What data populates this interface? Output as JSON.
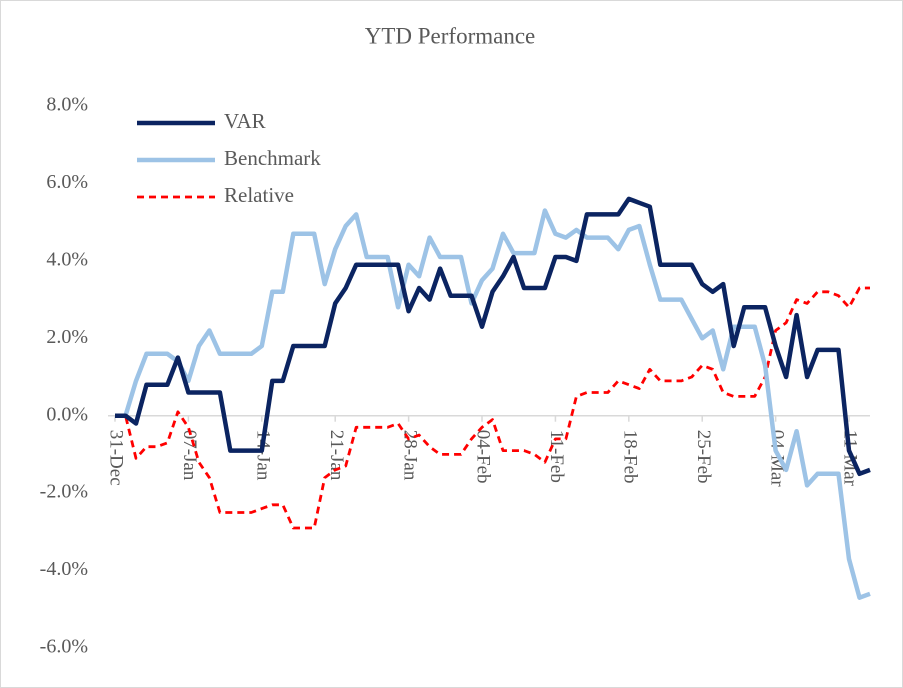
{
  "chart_data": {
    "type": "line",
    "title": "YTD Performance",
    "categories": [
      "31-Dec",
      null,
      null,
      null,
      null,
      null,
      null,
      "07-Jan",
      null,
      null,
      null,
      null,
      null,
      null,
      "14-Jan",
      null,
      null,
      null,
      null,
      null,
      null,
      "21-Jan",
      null,
      null,
      null,
      null,
      null,
      null,
      "28-Jan",
      null,
      null,
      null,
      null,
      null,
      null,
      "04-Feb",
      null,
      null,
      null,
      null,
      null,
      null,
      "11-Feb",
      null,
      null,
      null,
      null,
      null,
      null,
      "18-Feb",
      null,
      null,
      null,
      null,
      null,
      null,
      "25-Feb",
      null,
      null,
      null,
      null,
      null,
      null,
      "04-Mar",
      null,
      null,
      null,
      null,
      null,
      null,
      "11-Mar",
      null,
      null
    ],
    "ylim": [
      -6,
      8
    ],
    "yticks": [
      {
        "value": -6,
        "label": "-6.0%"
      },
      {
        "value": -4,
        "label": "-4.0%"
      },
      {
        "value": -2,
        "label": "-2.0%"
      },
      {
        "value": 0,
        "label": "0.0%"
      },
      {
        "value": 2,
        "label": "2.0%"
      },
      {
        "value": 4,
        "label": "4.0%"
      },
      {
        "value": 6,
        "label": "6.0%"
      },
      {
        "value": 8,
        "label": "8.0%"
      }
    ],
    "legend": "top-left",
    "series": [
      {
        "name": "VAR",
        "color": "#0b2461",
        "dash": "solid",
        "values": [
          0,
          0,
          -0.2,
          0.8,
          0.8,
          0.8,
          1.5,
          0.6,
          0.6,
          0.6,
          0.6,
          -0.9,
          -0.9,
          -0.9,
          -0.9,
          0.9,
          0.9,
          1.8,
          1.8,
          1.8,
          1.8,
          2.9,
          3.3,
          3.9,
          3.9,
          3.9,
          3.9,
          3.9,
          2.7,
          3.3,
          3.0,
          3.8,
          3.1,
          3.1,
          3.1,
          2.3,
          3.2,
          3.6,
          4.1,
          3.3,
          3.3,
          3.3,
          4.1,
          4.1,
          4.0,
          5.2,
          5.2,
          5.2,
          5.2,
          5.6,
          5.5,
          5.4,
          3.9,
          3.9,
          3.9,
          3.9,
          3.4,
          3.2,
          3.4,
          1.8,
          2.8,
          2.8,
          2.8,
          1.8,
          1.0,
          2.6,
          1.0,
          1.7,
          1.7,
          1.7,
          -0.9,
          -1.5,
          -1.4
        ]
      },
      {
        "name": "Benchmark",
        "color": "#9dc3e6",
        "dash": "solid",
        "values": [
          0,
          0,
          0.9,
          1.6,
          1.6,
          1.6,
          1.4,
          0.9,
          1.8,
          2.2,
          1.6,
          1.6,
          1.6,
          1.6,
          1.8,
          3.2,
          3.2,
          4.7,
          4.7,
          4.7,
          3.4,
          4.3,
          4.9,
          5.2,
          4.1,
          4.1,
          4.1,
          2.8,
          3.9,
          3.6,
          4.6,
          4.1,
          4.1,
          4.1,
          2.9,
          3.5,
          3.8,
          4.7,
          4.2,
          4.2,
          4.2,
          5.3,
          4.7,
          4.6,
          4.8,
          4.6,
          4.6,
          4.6,
          4.3,
          4.8,
          4.9,
          3.9,
          3.0,
          3.0,
          3.0,
          2.5,
          2.0,
          2.2,
          1.2,
          2.3,
          2.3,
          2.3,
          1.3,
          -0.9,
          -1.4,
          -0.4,
          -1.8,
          -1.5,
          -1.5,
          -1.5,
          -3.7,
          -4.7,
          -4.6
        ]
      },
      {
        "name": "Relative",
        "color": "#ff0000",
        "dash": "dashed",
        "values": [
          0,
          0,
          -1.1,
          -0.8,
          -0.8,
          -0.7,
          0.1,
          -0.3,
          -1.2,
          -1.6,
          -2.5,
          -2.5,
          -2.5,
          -2.5,
          -2.4,
          -2.3,
          -2.3,
          -2.9,
          -2.9,
          -2.9,
          -1.6,
          -1.4,
          -1.3,
          -0.3,
          -0.3,
          -0.3,
          -0.3,
          -0.2,
          -0.6,
          -0.5,
          -0.8,
          -1.0,
          -1.0,
          -1.0,
          -0.6,
          -0.3,
          -0.1,
          -0.9,
          -0.9,
          -0.9,
          -1.0,
          -1.2,
          -0.6,
          -0.6,
          0.5,
          0.6,
          0.6,
          0.6,
          0.9,
          0.8,
          0.7,
          1.2,
          0.9,
          0.9,
          0.9,
          1.0,
          1.3,
          1.2,
          0.6,
          0.5,
          0.5,
          0.5,
          1.0,
          2.2,
          2.4,
          3.0,
          2.9,
          3.2,
          3.2,
          3.1,
          2.8,
          3.3,
          3.3
        ]
      }
    ]
  }
}
